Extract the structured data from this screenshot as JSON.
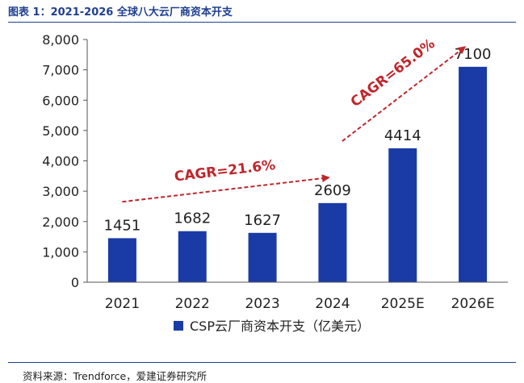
{
  "header": {
    "title": "图表 1：2021-2026 全球八大云厂商资本开支"
  },
  "footer": {
    "source": "资料来源：Trendforce，爱建证券研究所"
  },
  "colors": {
    "bar": "#1a3ba6",
    "accent": "#c0262c",
    "rule": "#1f3f8f"
  },
  "chart_data": {
    "type": "bar",
    "title": "",
    "xlabel": "",
    "ylabel": "",
    "ylim": [
      0,
      8000
    ],
    "yticks": [
      0,
      1000,
      2000,
      3000,
      4000,
      5000,
      6000,
      7000,
      8000
    ],
    "ytick_labels": [
      "0",
      "1,000",
      "2,000",
      "3,000",
      "4,000",
      "5,000",
      "6,000",
      "7,000",
      "8,000"
    ],
    "categories": [
      "2021",
      "2022",
      "2023",
      "2024",
      "2025E",
      "2026E"
    ],
    "series": [
      {
        "name": "CSP云厂商资本开支（亿美元）",
        "values": [
          1451,
          1682,
          1627,
          2609,
          4414,
          7100
        ]
      }
    ],
    "data_labels": [
      "1451",
      "1682",
      "1627",
      "2609",
      "4414",
      "7100"
    ],
    "legend": {
      "position": "bottom",
      "label": "CSP云厂商资本开支（亿美元）"
    },
    "annotations": [
      {
        "text": "CAGR=21.6%",
        "from_category": "2021",
        "to_category": "2024"
      },
      {
        "text": "CAGR=65.0%",
        "from_category": "2024",
        "to_category": "2026E"
      }
    ],
    "grid": false
  }
}
